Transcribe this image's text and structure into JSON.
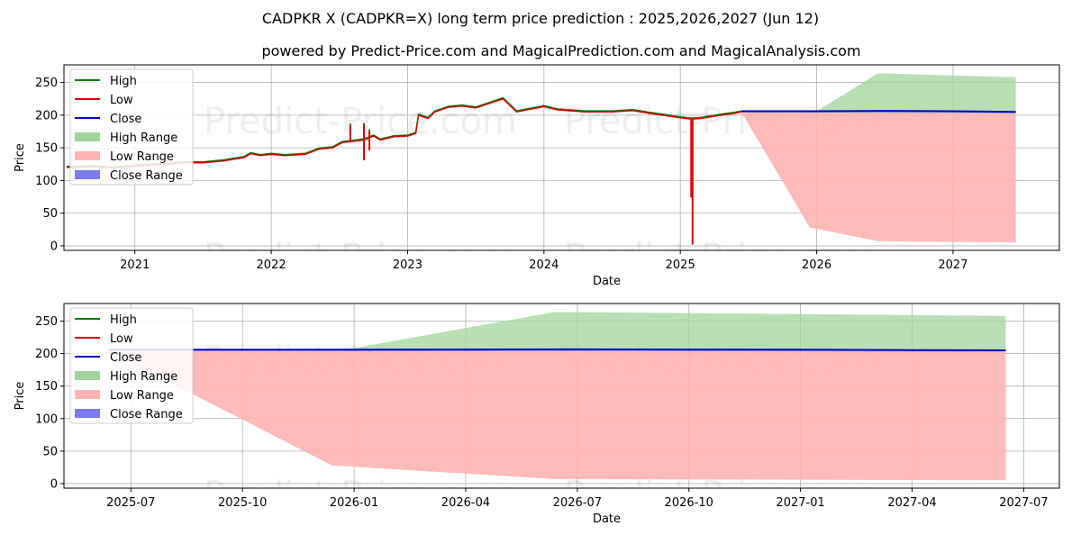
{
  "title_line1": "CADPKR X (CADPKR=X) long term price prediction : 2025,2026,2027 (Jun 12)",
  "title_line2": "powered by Predict-Price.com and MagicalPrediction.com and MagicalAnalysis.com",
  "watermark": "Predict-Price.com",
  "colors": {
    "high": "#008000",
    "low": "#dd0000",
    "close": "#0000cc",
    "high_range": "#9fd49a",
    "low_range": "#ffb3b3",
    "close_range": "#7b7bf0",
    "grid": "#b0b0b0"
  },
  "chart_data": [
    {
      "type": "line",
      "panel": "top",
      "xlabel": "Date",
      "ylabel": "Price",
      "xlim": [
        2020.48,
        2027.78
      ],
      "ylim": [
        -7,
        277
      ],
      "yticks": [
        0,
        50,
        100,
        150,
        200,
        250
      ],
      "xticks": [
        {
          "value": 2021.0,
          "label": "2021"
        },
        {
          "value": 2022.0,
          "label": "2022"
        },
        {
          "value": 2023.0,
          "label": "2023"
        },
        {
          "value": 2024.0,
          "label": "2024"
        },
        {
          "value": 2025.0,
          "label": "2025"
        },
        {
          "value": 2026.0,
          "label": "2026"
        },
        {
          "value": 2027.0,
          "label": "2027"
        }
      ],
      "grid": true,
      "legend": {
        "position": "top-left",
        "entries": [
          {
            "label": "High",
            "kind": "line",
            "color_key": "high"
          },
          {
            "label": "Low",
            "kind": "line",
            "color_key": "low"
          },
          {
            "label": "Close",
            "kind": "line",
            "color_key": "close"
          },
          {
            "label": "High Range",
            "kind": "patch",
            "color_key": "high_range"
          },
          {
            "label": "Low Range",
            "kind": "patch",
            "color_key": "low_range"
          },
          {
            "label": "Close Range",
            "kind": "patch",
            "color_key": "close_range"
          }
        ]
      },
      "history": [
        [
          2020.5,
          120
        ],
        [
          2020.7,
          121
        ],
        [
          2020.85,
          119
        ],
        [
          2021.0,
          122
        ],
        [
          2021.2,
          124
        ],
        [
          2021.35,
          127
        ],
        [
          2021.5,
          127
        ],
        [
          2021.65,
          130
        ],
        [
          2021.8,
          135
        ],
        [
          2021.85,
          141
        ],
        [
          2021.92,
          138
        ],
        [
          2022.0,
          140
        ],
        [
          2022.1,
          138
        ],
        [
          2022.25,
          140
        ],
        [
          2022.35,
          148
        ],
        [
          2022.45,
          150
        ],
        [
          2022.52,
          158
        ],
        [
          2022.6,
          160
        ],
        [
          2022.68,
          162
        ],
        [
          2022.75,
          168
        ],
        [
          2022.8,
          162
        ],
        [
          2022.9,
          167
        ],
        [
          2023.0,
          168
        ],
        [
          2023.06,
          172
        ],
        [
          2023.08,
          200
        ],
        [
          2023.15,
          195
        ],
        [
          2023.2,
          205
        ],
        [
          2023.3,
          212
        ],
        [
          2023.4,
          214
        ],
        [
          2023.5,
          211
        ],
        [
          2023.6,
          218
        ],
        [
          2023.7,
          225
        ],
        [
          2023.8,
          205
        ],
        [
          2023.9,
          209
        ],
        [
          2024.0,
          213
        ],
        [
          2024.1,
          208
        ],
        [
          2024.3,
          205
        ],
        [
          2024.5,
          205
        ],
        [
          2024.65,
          207
        ],
        [
          2024.8,
          202
        ],
        [
          2025.0,
          196
        ],
        [
          2025.08,
          194
        ],
        [
          2025.15,
          195
        ],
        [
          2025.3,
          200
        ],
        [
          2025.4,
          203
        ],
        [
          2025.45,
          205
        ]
      ],
      "spikes": [
        {
          "x": 2022.58,
          "high": 187,
          "low": 160
        },
        {
          "x": 2022.68,
          "high": 188,
          "low": 131
        },
        {
          "x": 2022.72,
          "high": 178,
          "low": 146
        },
        {
          "x": 2025.08,
          "high": 196,
          "low": 74
        },
        {
          "x": 2025.09,
          "high": 196,
          "low": 2
        }
      ],
      "forecast": {
        "close": [
          [
            2025.45,
            206
          ],
          [
            2026.0,
            206
          ],
          [
            2026.5,
            206.5
          ],
          [
            2027.0,
            206
          ],
          [
            2027.46,
            205
          ]
        ],
        "high_range": {
          "upper": [
            [
              2025.45,
              206
            ],
            [
              2026.0,
              206
            ],
            [
              2026.45,
              264
            ],
            [
              2027.46,
              258
            ]
          ],
          "lower": [
            [
              2025.45,
              204
            ],
            [
              2027.46,
              203
            ]
          ]
        },
        "low_range": {
          "upper": [
            [
              2025.45,
              204
            ],
            [
              2027.46,
              203
            ]
          ],
          "lower": [
            [
              2025.45,
              204
            ],
            [
              2025.95,
              28
            ],
            [
              2026.45,
              7
            ],
            [
              2027.46,
              5
            ]
          ]
        },
        "close_range": {
          "upper": [
            [
              2025.45,
              207
            ],
            [
              2027.46,
              206
            ]
          ],
          "lower": [
            [
              2025.45,
              204
            ],
            [
              2027.46,
              203
            ]
          ]
        }
      }
    },
    {
      "type": "line",
      "panel": "bottom",
      "xlabel": "Date",
      "ylabel": "Price",
      "xlim": [
        2025.35,
        2027.58
      ],
      "ylim": [
        -7,
        277
      ],
      "yticks": [
        0,
        50,
        100,
        150,
        200,
        250
      ],
      "xticks": [
        {
          "value": 2025.5,
          "label": "2025-07"
        },
        {
          "value": 2025.75,
          "label": "2025-10"
        },
        {
          "value": 2026.0,
          "label": "2026-01"
        },
        {
          "value": 2026.25,
          "label": "2026-04"
        },
        {
          "value": 2026.5,
          "label": "2026-07"
        },
        {
          "value": 2026.75,
          "label": "2026-10"
        },
        {
          "value": 2027.0,
          "label": "2027-01"
        },
        {
          "value": 2027.25,
          "label": "2027-04"
        },
        {
          "value": 2027.5,
          "label": "2027-07"
        }
      ],
      "grid": true,
      "legend": {
        "position": "top-left",
        "entries": [
          {
            "label": "High",
            "kind": "line",
            "color_key": "high"
          },
          {
            "label": "Low",
            "kind": "line",
            "color_key": "low"
          },
          {
            "label": "Close",
            "kind": "line",
            "color_key": "close"
          },
          {
            "label": "High Range",
            "kind": "patch",
            "color_key": "high_range"
          },
          {
            "label": "Low Range",
            "kind": "patch",
            "color_key": "low_range"
          },
          {
            "label": "Close Range",
            "kind": "patch",
            "color_key": "close_range"
          }
        ]
      },
      "history": [],
      "spikes": [],
      "forecast": {
        "close": [
          [
            2025.45,
            206
          ],
          [
            2026.0,
            206
          ],
          [
            2026.5,
            206.5
          ],
          [
            2027.0,
            206
          ],
          [
            2027.46,
            205
          ]
        ],
        "high_range": {
          "upper": [
            [
              2025.45,
              206
            ],
            [
              2025.98,
              206
            ],
            [
              2026.45,
              264
            ],
            [
              2027.46,
              258
            ]
          ],
          "lower": [
            [
              2025.45,
              204
            ],
            [
              2027.46,
              203
            ]
          ]
        },
        "low_range": {
          "upper": [
            [
              2025.45,
              204
            ],
            [
              2027.46,
              203
            ]
          ],
          "lower": [
            [
              2025.45,
              204
            ],
            [
              2025.95,
              28
            ],
            [
              2026.45,
              7
            ],
            [
              2027.46,
              5
            ]
          ]
        },
        "close_range": {
          "upper": [
            [
              2025.45,
              207
            ],
            [
              2027.46,
              206
            ]
          ],
          "lower": [
            [
              2025.45,
              204
            ],
            [
              2027.46,
              203
            ]
          ]
        }
      }
    }
  ]
}
